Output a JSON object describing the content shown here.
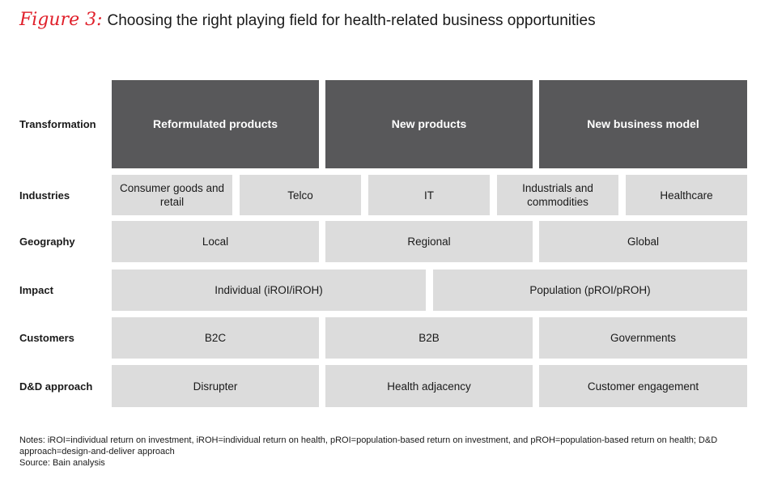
{
  "title": {
    "figure_label": "Figure 3:",
    "text": "Choosing the right playing field for health-related business opportunities"
  },
  "rows": {
    "transformation": {
      "label": "Transformation",
      "cells": [
        "Reformulated products",
        "New products",
        "New business model"
      ]
    },
    "industries": {
      "label": "Industries",
      "cells": [
        "Consumer goods and retail",
        "Telco",
        "IT",
        "Industrials and commodities",
        "Healthcare"
      ]
    },
    "geography": {
      "label": "Geography",
      "cells": [
        "Local",
        "Regional",
        "Global"
      ]
    },
    "impact": {
      "label": "Impact",
      "cells": [
        "Individual (iROI/iROH)",
        "Population (pROI/pROH)"
      ]
    },
    "customers": {
      "label": "Customers",
      "cells": [
        "B2C",
        "B2B",
        "Governments"
      ]
    },
    "dd_approach": {
      "label": "D&D approach",
      "cells": [
        "Disrupter",
        "Health adjacency",
        "Customer engagement"
      ]
    }
  },
  "colors": {
    "accent": "#e0202b",
    "dark_cell": "#58585a",
    "light_cell": "#dcdcdc"
  },
  "notes": {
    "text": "Notes: iROI=individual return on investment, iROH=individual return on health, pROI=population-based return on investment, and pROH=population-based return on health; D&D approach=design-and-deliver approach",
    "source": "Source: Bain analysis"
  }
}
